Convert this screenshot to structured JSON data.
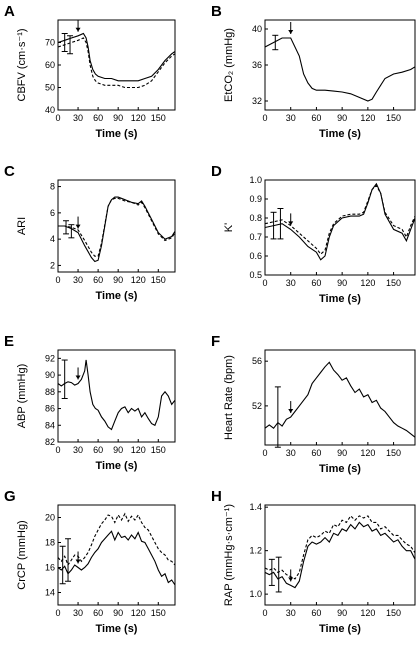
{
  "chart_data": [
    {
      "type": "line",
      "panel": "A",
      "ylabel": "CBFV (cm·s⁻¹)",
      "xlabel": "Time (s)",
      "xlim": [
        0,
        175
      ],
      "xticks": [
        0,
        30,
        60,
        90,
        120,
        150
      ],
      "ylim": [
        40,
        80
      ],
      "yticks": [
        40,
        50,
        60,
        70
      ],
      "arrow_x": 30,
      "series": [
        {
          "style": "solid",
          "x": [
            0,
            10,
            20,
            30,
            38,
            42,
            45,
            48,
            52,
            56,
            60,
            70,
            80,
            90,
            100,
            110,
            120,
            130,
            140,
            150,
            160,
            170,
            175
          ],
          "y": [
            70,
            71,
            72,
            73,
            74,
            72,
            68,
            62,
            58,
            56,
            55,
            54,
            54,
            53,
            53,
            53,
            53,
            54,
            55,
            58,
            62,
            65,
            66
          ]
        },
        {
          "style": "dashed",
          "x": [
            0,
            10,
            20,
            30,
            38,
            42,
            45,
            48,
            52,
            56,
            60,
            70,
            80,
            90,
            100,
            110,
            120,
            130,
            140,
            150,
            160,
            170,
            175
          ],
          "y": [
            68,
            69,
            70,
            71,
            72,
            70,
            66,
            60,
            55,
            53,
            52,
            51,
            51,
            51,
            50,
            50,
            50,
            51,
            53,
            57,
            61,
            64,
            65
          ]
        }
      ],
      "error_bars": [
        {
          "x": 10,
          "y": 70,
          "err": 4
        },
        {
          "x": 18,
          "y": 69,
          "err": 4
        }
      ]
    },
    {
      "type": "line",
      "panel": "B",
      "ylabel": "EtCO₂ (mmHg)",
      "xlabel": "Time (s)",
      "xlim": [
        0,
        175
      ],
      "xticks": [
        0,
        30,
        60,
        90,
        120,
        150
      ],
      "ylim": [
        31,
        41
      ],
      "yticks": [
        32,
        36,
        40
      ],
      "arrow_x": 30,
      "series": [
        {
          "style": "solid",
          "x": [
            0,
            10,
            20,
            30,
            40,
            45,
            50,
            55,
            60,
            70,
            80,
            90,
            100,
            110,
            120,
            125,
            130,
            140,
            150,
            160,
            170,
            175
          ],
          "y": [
            38,
            38.5,
            39,
            39,
            37,
            35,
            34,
            33.4,
            33.2,
            33.2,
            33.1,
            33,
            32.8,
            32.4,
            32,
            32.2,
            33,
            34.5,
            35,
            35.2,
            35.5,
            35.8
          ]
        }
      ],
      "error_bars": [
        {
          "x": 12,
          "y": 38.5,
          "err": 0.8
        }
      ]
    },
    {
      "type": "line",
      "panel": "C",
      "ylabel": "ARI",
      "xlabel": "Time (s)",
      "xlim": [
        0,
        175
      ],
      "xticks": [
        0,
        30,
        60,
        90,
        120,
        150
      ],
      "ylim": [
        1.5,
        8.5
      ],
      "yticks": [
        2,
        4,
        6,
        8
      ],
      "arrow_x": 30,
      "series": [
        {
          "style": "solid",
          "x": [
            0,
            10,
            20,
            30,
            40,
            50,
            55,
            60,
            65,
            70,
            75,
            80,
            85,
            90,
            100,
            110,
            120,
            125,
            130,
            140,
            150,
            160,
            170,
            175
          ],
          "y": [
            5,
            5,
            4.8,
            4.5,
            3.5,
            2.6,
            2.3,
            2.4,
            3.5,
            5,
            6.5,
            7,
            7.2,
            7.2,
            7,
            6.8,
            6.7,
            6.9,
            6.5,
            5.5,
            4.5,
            4,
            4.2,
            4.6
          ]
        },
        {
          "style": "dashed",
          "x": [
            0,
            10,
            20,
            30,
            40,
            50,
            55,
            60,
            65,
            70,
            75,
            80,
            85,
            90,
            100,
            110,
            120,
            125,
            130,
            140,
            150,
            160,
            170,
            175
          ],
          "y": [
            5,
            5,
            4.9,
            4.7,
            3.9,
            3,
            2.7,
            2.7,
            3.7,
            5.1,
            6.5,
            7,
            7.1,
            7.1,
            6.9,
            6.8,
            6.6,
            6.8,
            6.4,
            5.4,
            4.4,
            3.9,
            4.1,
            4.5
          ]
        }
      ],
      "error_bars": [
        {
          "x": 12,
          "y": 4.9,
          "err": 0.5
        },
        {
          "x": 20,
          "y": 4.6,
          "err": 0.5
        }
      ]
    },
    {
      "type": "line",
      "panel": "D",
      "ylabel": "K'",
      "xlabel": "Time (s)",
      "xlim": [
        0,
        175
      ],
      "xticks": [
        0,
        30,
        60,
        90,
        120,
        150
      ],
      "ylim": [
        0.5,
        1.0
      ],
      "yticks": [
        0.5,
        0.6,
        0.7,
        0.8,
        0.9,
        1.0
      ],
      "arrow_x": 30,
      "series": [
        {
          "style": "solid",
          "x": [
            0,
            10,
            20,
            30,
            40,
            50,
            60,
            65,
            70,
            75,
            80,
            90,
            100,
            110,
            115,
            120,
            125,
            130,
            135,
            140,
            150,
            160,
            165,
            170,
            175
          ],
          "y": [
            0.75,
            0.76,
            0.77,
            0.74,
            0.7,
            0.65,
            0.62,
            0.58,
            0.6,
            0.7,
            0.76,
            0.8,
            0.81,
            0.81,
            0.82,
            0.88,
            0.95,
            0.98,
            0.93,
            0.82,
            0.74,
            0.72,
            0.68,
            0.74,
            0.8
          ]
        },
        {
          "style": "dashed",
          "x": [
            0,
            10,
            20,
            30,
            40,
            50,
            60,
            65,
            70,
            75,
            80,
            90,
            100,
            110,
            115,
            120,
            125,
            130,
            135,
            140,
            150,
            160,
            165,
            170,
            175
          ],
          "y": [
            0.77,
            0.78,
            0.79,
            0.76,
            0.72,
            0.68,
            0.64,
            0.61,
            0.63,
            0.72,
            0.77,
            0.81,
            0.82,
            0.82,
            0.83,
            0.89,
            0.95,
            0.97,
            0.93,
            0.83,
            0.76,
            0.74,
            0.7,
            0.76,
            0.81
          ]
        }
      ],
      "error_bars": [
        {
          "x": 10,
          "y": 0.76,
          "err": 0.07
        },
        {
          "x": 18,
          "y": 0.77,
          "err": 0.08
        }
      ]
    },
    {
      "type": "line",
      "panel": "E",
      "ylabel": "ABP (mmHg)",
      "xlabel": "Time (s)",
      "xlim": [
        0,
        175
      ],
      "xticks": [
        0,
        30,
        60,
        90,
        120,
        150
      ],
      "ylim": [
        82,
        93
      ],
      "yticks": [
        82,
        84,
        86,
        88,
        90,
        92
      ],
      "arrow_x": 30,
      "series": [
        {
          "style": "solid",
          "x": [
            0,
            5,
            10,
            15,
            20,
            25,
            30,
            35,
            40,
            42,
            45,
            48,
            52,
            56,
            60,
            65,
            70,
            75,
            80,
            85,
            90,
            95,
            100,
            105,
            110,
            115,
            120,
            125,
            130,
            135,
            140,
            145,
            150,
            155,
            160,
            165,
            170,
            175
          ],
          "y": [
            89,
            88.7,
            89,
            89.2,
            89.1,
            88.8,
            89,
            89.5,
            90.5,
            91.8,
            90,
            88,
            86.5,
            86,
            85.8,
            85,
            84.5,
            83.8,
            83.5,
            84.5,
            85.5,
            86,
            86.2,
            85.5,
            86,
            85.7,
            86,
            85,
            85.5,
            84.8,
            84.2,
            84,
            85,
            87.5,
            88,
            87.5,
            86.5,
            87
          ]
        }
      ],
      "error_bars": [
        {
          "x": 10,
          "y": 89.5,
          "err": 2.3
        }
      ]
    },
    {
      "type": "line",
      "panel": "F",
      "ylabel": "Heart Rate (bpm)",
      "xlabel": "Time (s)",
      "xlim": [
        0,
        175
      ],
      "xticks": [
        0,
        30,
        60,
        90,
        120,
        150
      ],
      "ylim": [
        48.5,
        57
      ],
      "yticks": [
        48,
        52,
        56
      ],
      "arrow_x": 30,
      "series": [
        {
          "style": "solid",
          "x": [
            0,
            5,
            10,
            15,
            20,
            25,
            30,
            35,
            40,
            45,
            50,
            55,
            60,
            65,
            70,
            75,
            80,
            85,
            90,
            95,
            100,
            105,
            110,
            115,
            120,
            125,
            130,
            135,
            140,
            145,
            150,
            155,
            160,
            165,
            170,
            175
          ],
          "y": [
            50,
            50.3,
            50,
            50.5,
            50.2,
            50.8,
            51,
            51.5,
            52,
            52.5,
            53,
            54,
            54.5,
            55,
            55.5,
            55.9,
            55.2,
            54.8,
            54.3,
            54.5,
            53.8,
            53.2,
            53.5,
            52.8,
            53,
            52.3,
            52.5,
            51.8,
            51.5,
            51,
            50.5,
            50.2,
            50,
            49.8,
            49.5,
            49.2
          ]
        }
      ],
      "error_bars": [
        {
          "x": 15,
          "y": 51,
          "err": 2.7
        }
      ]
    },
    {
      "type": "line",
      "panel": "G",
      "ylabel": "CrCP (mmHg)",
      "xlabel": "Time (s)",
      "xlim": [
        0,
        175
      ],
      "xticks": [
        0,
        30,
        60,
        90,
        120,
        150
      ],
      "ylim": [
        13,
        21
      ],
      "yticks": [
        14,
        16,
        18,
        20
      ],
      "arrow_x": 30,
      "series": [
        {
          "style": "solid",
          "x": [
            0,
            5,
            10,
            15,
            20,
            25,
            30,
            35,
            40,
            45,
            50,
            55,
            60,
            65,
            70,
            75,
            80,
            85,
            90,
            95,
            100,
            105,
            110,
            115,
            120,
            125,
            130,
            135,
            140,
            145,
            150,
            155,
            160,
            165,
            170,
            175
          ],
          "y": [
            16,
            15.8,
            16.1,
            15.5,
            15.8,
            16.2,
            16,
            15.8,
            16,
            16.3,
            16.8,
            17.2,
            17.5,
            18,
            18.3,
            18.6,
            18.9,
            18.2,
            18.8,
            18.4,
            18.5,
            18.2,
            18.6,
            18.3,
            18.8,
            18.1,
            18,
            17.5,
            17,
            16.5,
            15.8,
            15.3,
            15.5,
            14.8,
            15,
            14.6
          ]
        },
        {
          "style": "dashed",
          "x": [
            0,
            5,
            10,
            15,
            20,
            25,
            30,
            35,
            40,
            45,
            50,
            55,
            60,
            65,
            70,
            75,
            80,
            85,
            90,
            95,
            100,
            105,
            110,
            115,
            120,
            125,
            130,
            135,
            140,
            145,
            150,
            155,
            160,
            165,
            170,
            175
          ],
          "y": [
            16.8,
            16.5,
            16.9,
            16.2,
            16.6,
            17,
            16.9,
            16.5,
            16.8,
            17.2,
            17.8,
            18.5,
            19,
            19.5,
            19.8,
            20.2,
            20.1,
            19.6,
            20.2,
            19.8,
            20.3,
            19.7,
            20.1,
            19.8,
            20.2,
            19.6,
            19.2,
            19,
            18.5,
            18,
            17.5,
            17.2,
            17,
            16.6,
            16.5,
            16.2
          ]
        }
      ],
      "error_bars": [
        {
          "x": 7,
          "y": 16.2,
          "err": 1.5
        },
        {
          "x": 15,
          "y": 16.6,
          "err": 1.7
        }
      ]
    },
    {
      "type": "line",
      "panel": "H",
      "ylabel": "RAP (mmHg·s·cm⁻¹)",
      "xlabel": "Time (s)",
      "xlim": [
        0,
        175
      ],
      "xticks": [
        0,
        30,
        60,
        90,
        120,
        150
      ],
      "ylim": [
        0.95,
        1.41
      ],
      "yticks": [
        1.0,
        1.2,
        1.4
      ],
      "arrow_x": 30,
      "series": [
        {
          "style": "solid",
          "x": [
            0,
            5,
            10,
            15,
            20,
            25,
            30,
            35,
            40,
            45,
            50,
            55,
            60,
            65,
            70,
            75,
            80,
            85,
            90,
            95,
            100,
            105,
            110,
            115,
            120,
            125,
            130,
            135,
            140,
            145,
            150,
            155,
            160,
            165,
            170,
            175
          ],
          "y": [
            1.1,
            1.09,
            1.1,
            1.07,
            1.08,
            1.05,
            1.04,
            1.03,
            1.06,
            1.15,
            1.22,
            1.24,
            1.23,
            1.24,
            1.26,
            1.24,
            1.28,
            1.27,
            1.3,
            1.29,
            1.32,
            1.3,
            1.33,
            1.31,
            1.32,
            1.29,
            1.3,
            1.27,
            1.28,
            1.26,
            1.24,
            1.25,
            1.22,
            1.2,
            1.2,
            1.16
          ]
        },
        {
          "style": "dashed",
          "x": [
            0,
            5,
            10,
            15,
            20,
            25,
            30,
            35,
            40,
            45,
            50,
            55,
            60,
            65,
            70,
            75,
            80,
            85,
            90,
            95,
            100,
            105,
            110,
            115,
            120,
            125,
            130,
            135,
            140,
            145,
            150,
            155,
            160,
            165,
            170,
            175
          ],
          "y": [
            1.12,
            1.11,
            1.12,
            1.1,
            1.11,
            1.09,
            1.08,
            1.07,
            1.1,
            1.18,
            1.25,
            1.27,
            1.26,
            1.27,
            1.29,
            1.28,
            1.32,
            1.31,
            1.34,
            1.33,
            1.36,
            1.34,
            1.36,
            1.35,
            1.36,
            1.33,
            1.33,
            1.3,
            1.31,
            1.29,
            1.27,
            1.27,
            1.25,
            1.23,
            1.22,
            1.19
          ]
        }
      ],
      "error_bars": [
        {
          "x": 8,
          "y": 1.1,
          "err": 0.06
        },
        {
          "x": 16,
          "y": 1.09,
          "err": 0.08
        }
      ]
    }
  ]
}
